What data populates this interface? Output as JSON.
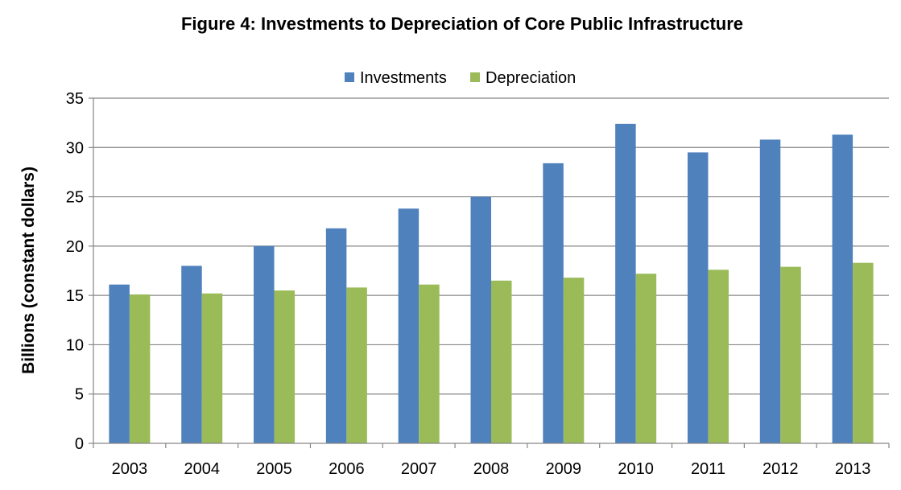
{
  "chart_data": {
    "type": "bar",
    "title": "Figure 4: Investments to Depreciation of Core Public Infrastructure",
    "xlabel": "",
    "ylabel": "Billions (constant dollars)",
    "ylim": [
      0,
      35
    ],
    "yticks": [
      0,
      5,
      10,
      15,
      20,
      25,
      30,
      35
    ],
    "grid": true,
    "legend_position": "top-center",
    "categories": [
      "2003",
      "2004",
      "2005",
      "2006",
      "2007",
      "2008",
      "2009",
      "2010",
      "2011",
      "2012",
      "2013"
    ],
    "series": [
      {
        "name": "Investments",
        "color": "#4F81BD",
        "values": [
          16.1,
          18.0,
          20.0,
          21.8,
          23.8,
          25.0,
          28.4,
          32.4,
          29.5,
          30.8,
          31.3
        ]
      },
      {
        "name": "Depreciation",
        "color": "#9BBB59",
        "values": [
          15.1,
          15.2,
          15.5,
          15.8,
          16.1,
          16.5,
          16.8,
          17.2,
          17.6,
          17.9,
          18.3
        ]
      }
    ]
  }
}
